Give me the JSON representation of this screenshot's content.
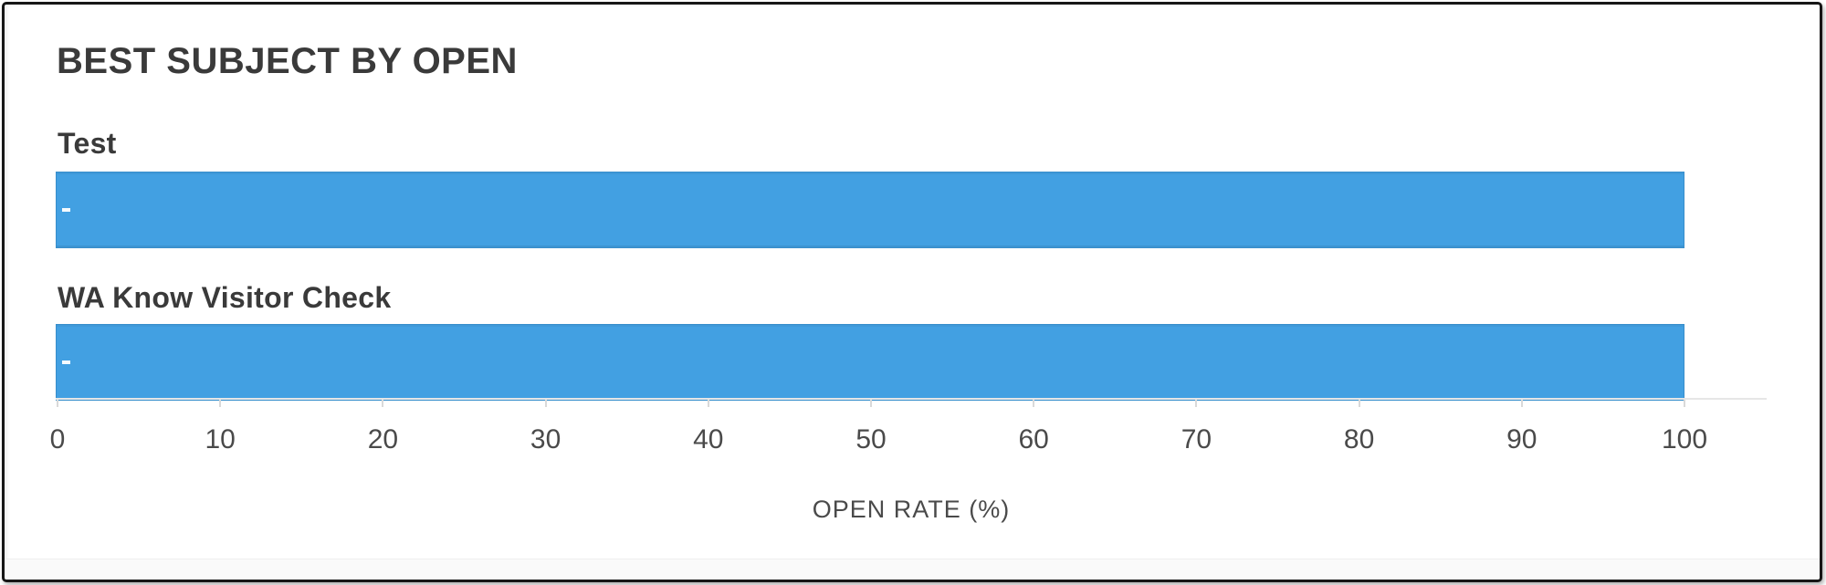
{
  "panel": {
    "title": "BEST SUBJECT BY OPEN"
  },
  "chart_data": {
    "type": "bar",
    "orientation": "horizontal",
    "title": "BEST SUBJECT BY OPEN",
    "categories": [
      "Test",
      "WA Know Visitor Check"
    ],
    "values": [
      100,
      100
    ],
    "xlabel": "OPEN RATE (%)",
    "ylabel": "",
    "xlim": [
      0,
      100
    ],
    "xticks": [
      0,
      10,
      20,
      30,
      40,
      50,
      60,
      70,
      80,
      90,
      100
    ],
    "grid": false,
    "legend": false,
    "bar_color": "#42A0E2",
    "axis_line_color": "#e6e6e6",
    "tick_color": "#d9d9d9",
    "text_color": "#3a3a3a",
    "tick_label_color": "#4a4a4a"
  }
}
